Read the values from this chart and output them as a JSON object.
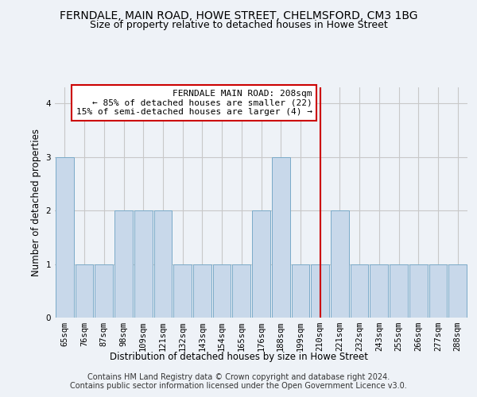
{
  "title": "FERNDALE, MAIN ROAD, HOWE STREET, CHELMSFORD, CM3 1BG",
  "subtitle": "Size of property relative to detached houses in Howe Street",
  "xlabel": "Distribution of detached houses by size in Howe Street",
  "ylabel": "Number of detached properties",
  "categories": [
    "65sqm",
    "76sqm",
    "87sqm",
    "98sqm",
    "109sqm",
    "121sqm",
    "132sqm",
    "143sqm",
    "154sqm",
    "165sqm",
    "176sqm",
    "188sqm",
    "199sqm",
    "210sqm",
    "221sqm",
    "232sqm",
    "243sqm",
    "255sqm",
    "266sqm",
    "277sqm",
    "288sqm"
  ],
  "values": [
    3,
    1,
    1,
    2,
    2,
    2,
    1,
    1,
    1,
    1,
    2,
    3,
    1,
    1,
    2,
    1,
    1,
    1,
    1,
    1,
    1
  ],
  "bar_color": "#c8d8ea",
  "bar_edge_color": "#7aaac8",
  "annotation_line_x": "210sqm",
  "annotation_line_color": "#cc0000",
  "annotation_text": "FERNDALE MAIN ROAD: 208sqm\n← 85% of detached houses are smaller (22)\n15% of semi-detached houses are larger (4) →",
  "annotation_box_color": "#ffffff",
  "annotation_box_edge": "#cc0000",
  "ylim": [
    0,
    4.3
  ],
  "yticks": [
    0,
    1,
    2,
    3,
    4
  ],
  "grid_color": "#c8c8c8",
  "footer_line1": "Contains HM Land Registry data © Crown copyright and database right 2024.",
  "footer_line2": "Contains public sector information licensed under the Open Government Licence v3.0.",
  "bg_color": "#eef2f7",
  "title_fontsize": 10,
  "subtitle_fontsize": 9,
  "axis_label_fontsize": 8.5,
  "tick_fontsize": 7.5,
  "footer_fontsize": 7,
  "annotation_fontsize": 8
}
